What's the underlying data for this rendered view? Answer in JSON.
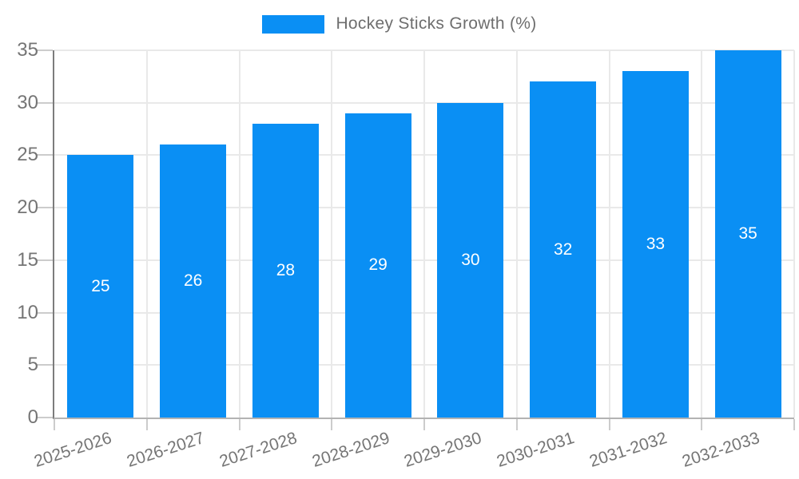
{
  "legend": {
    "label": "Hockey Sticks Growth (%)"
  },
  "chart_data": {
    "type": "bar",
    "title": "Hockey Sticks Growth (%)",
    "categories": [
      "2025-2026",
      "2026-2027",
      "2027-2028",
      "2028-2029",
      "2029-2030",
      "2030-2031",
      "2031-2032",
      "2032-2033"
    ],
    "values": [
      25,
      26,
      28,
      29,
      30,
      32,
      33,
      35
    ],
    "series": [
      {
        "name": "Hockey Sticks Growth (%)",
        "values": [
          25,
          26,
          28,
          29,
          30,
          32,
          33,
          35
        ]
      }
    ],
    "xlabel": "",
    "ylabel": "",
    "ylim": [
      0,
      35
    ],
    "yticks": [
      0,
      5,
      10,
      15,
      20,
      25,
      30,
      35
    ],
    "grid": "horizontal and vertical gridlines on",
    "legend_position": "top-center",
    "bar_label_position": "inside-center",
    "x_label_rotation_deg": -18,
    "colors": {
      "bar": "#0a8ff4",
      "bar_label": "#ffffff",
      "axis_text": "#757575",
      "legend_text": "#6e6e6e",
      "gridline": "#e9e9e9",
      "tick": "#cccccc",
      "y_axis_line": "#7c7c7c",
      "baseline": "#b3b3b3",
      "background": "#ffffff"
    }
  }
}
